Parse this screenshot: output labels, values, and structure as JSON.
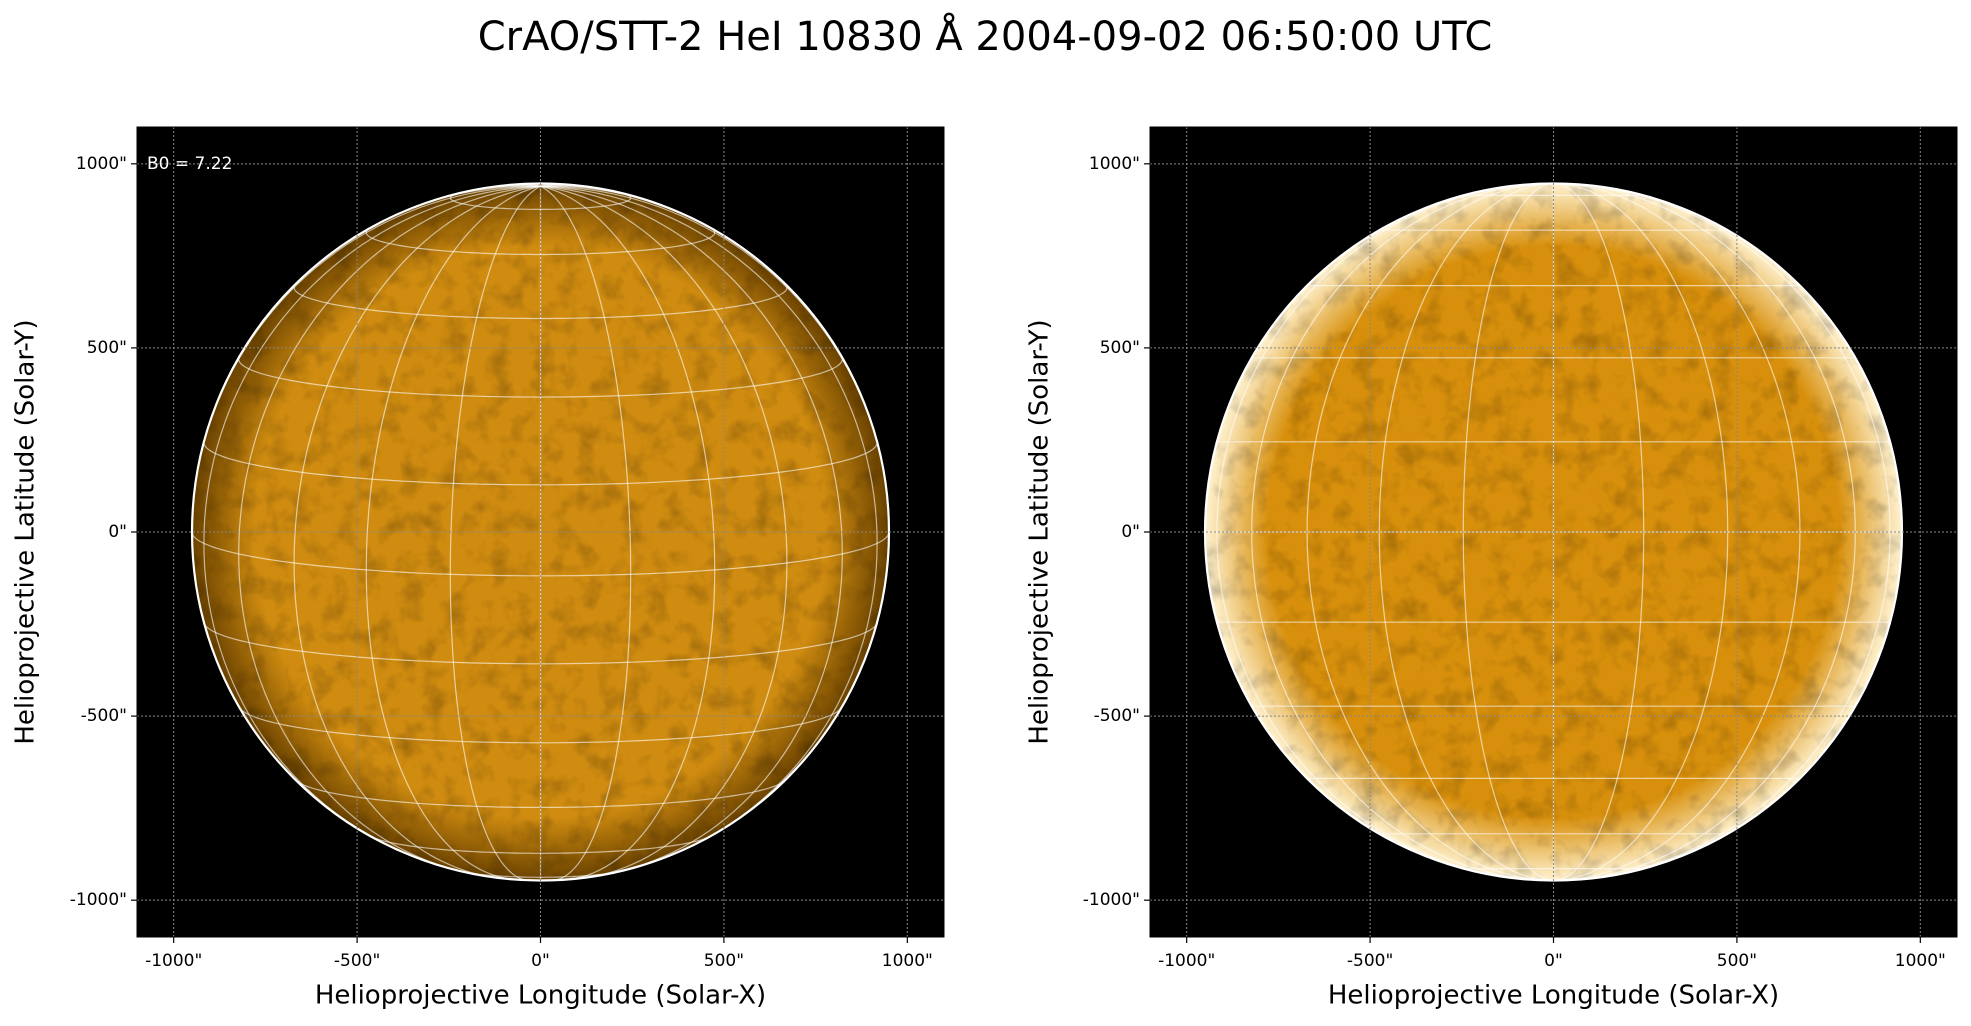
{
  "title": "CrAO/STT-2 HeI 10830 Å 2004-09-02 06:50:00 UTC",
  "chart_data": [
    {
      "type": "image",
      "xlabel": "Helioprojective Longitude (Solar-X)",
      "ylabel": "Helioprojective Latitude (Solar-Y)",
      "xlim": [
        -1100,
        1100
      ],
      "ylim": [
        -1100,
        1100
      ],
      "xticks": [
        {
          "value": -1000,
          "label": "-1000\""
        },
        {
          "value": -500,
          "label": "-500\""
        },
        {
          "value": 0,
          "label": "0\""
        },
        {
          "value": 500,
          "label": "500\""
        },
        {
          "value": 1000,
          "label": "1000\""
        }
      ],
      "yticks": [
        {
          "value": -1000,
          "label": "-1000\""
        },
        {
          "value": -500,
          "label": "-500\""
        },
        {
          "value": 0,
          "label": "0\""
        },
        {
          "value": 500,
          "label": "500\""
        },
        {
          "value": 1000,
          "label": "1000\""
        }
      ],
      "grid": true,
      "solar_radius": 950,
      "color": "#d08c10",
      "limb_color": "#6a4200",
      "annotation": {
        "value": 7.22,
        "label": "B0 = 7.22"
      }
    },
    {
      "type": "image",
      "xlabel": "Helioprojective Longitude (Solar-X)",
      "ylabel": "Helioprojective Latitude (Solar-Y)",
      "xlim": [
        -1100,
        1100
      ],
      "ylim": [
        -1100,
        1100
      ],
      "xticks": [
        {
          "value": -1000,
          "label": "-1000\""
        },
        {
          "value": -500,
          "label": "-500\""
        },
        {
          "value": 0,
          "label": "0\""
        },
        {
          "value": 500,
          "label": "500\""
        },
        {
          "value": 1000,
          "label": "1000\""
        }
      ],
      "yticks": [
        {
          "value": -1000,
          "label": "-1000\""
        },
        {
          "value": -500,
          "label": "-500\""
        },
        {
          "value": 0,
          "label": "0\""
        },
        {
          "value": 500,
          "label": "500\""
        },
        {
          "value": 1000,
          "label": "1000\""
        }
      ],
      "grid": true,
      "solar_radius": 950,
      "color": "#d8900c",
      "limb_color": "#fff2d0"
    }
  ]
}
